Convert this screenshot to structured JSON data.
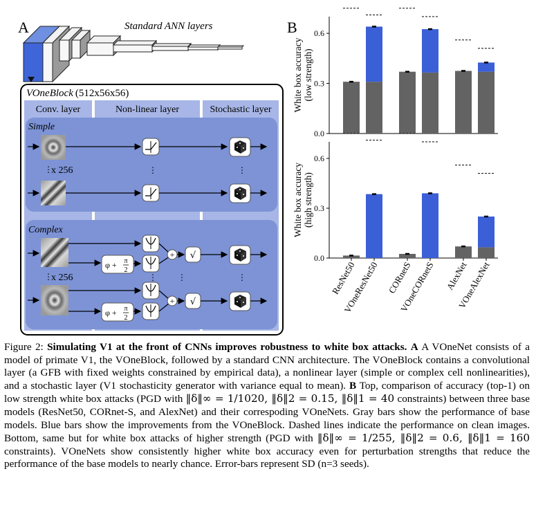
{
  "panel_a": {
    "letter": "A",
    "ann_label": "Standard ANN layers",
    "block_title_italic": "VOneBlock",
    "block_title_dims": "(512x56x56)",
    "col_headers": [
      "Conv. layer",
      "Non-linear layer",
      "Stochastic layer"
    ],
    "simple_label": "Simple",
    "complex_label": "Complex",
    "count_label": "x 256",
    "phase_label": "φ +",
    "phase_num": "π",
    "phase_den": "2",
    "sqrt_symbol": "√",
    "plus_symbol": "+",
    "colors": {
      "block_fill": "#8a9fdc",
      "column_fill": "#a7b6e6",
      "accent": "#3f66d8"
    }
  },
  "panel_b": {
    "letter": "B",
    "colors": {
      "base": "#636363",
      "improvement": "#3b5fd6"
    }
  },
  "chart_data": [
    {
      "type": "bar",
      "stacked": true,
      "ylabel": "White box accuracy (low strength)",
      "ylim": [
        0,
        0.7
      ],
      "yticks": [
        "0.0",
        "0.3",
        "0.6"
      ],
      "categories": [
        "ResNet50",
        "VOneResNet50",
        "CORnetS",
        "VOneCORnetS",
        "AlexNet",
        "VOneAlexNet"
      ],
      "series": [
        {
          "values": [
            0.31,
            0.31,
            0.37,
            0.365,
            0.375,
            0.37
          ]
        },
        {
          "values": [
            0,
            0.33,
            0,
            0.26,
            0,
            0.055
          ]
        }
      ],
      "totals": [
        0.31,
        0.64,
        0.37,
        0.625,
        0.375,
        0.425
      ],
      "clean_accuracy": [
        0.75,
        0.71,
        0.75,
        0.7,
        0.56,
        0.51
      ]
    },
    {
      "type": "bar",
      "stacked": true,
      "ylabel": "White box accuracy (high strength)",
      "ylim": [
        0,
        0.7
      ],
      "yticks": [
        "0.0",
        "0.3",
        "0.6"
      ],
      "categories": [
        "ResNet50",
        "VOneResNet50",
        "CORnetS",
        "VOneCORnetS",
        "AlexNet",
        "VOneAlexNet"
      ],
      "series": [
        {
          "values": [
            0.015,
            0.0,
            0.025,
            0.0,
            0.07,
            0.065
          ]
        },
        {
          "values": [
            0,
            0.385,
            0,
            0.39,
            0,
            0.185
          ]
        }
      ],
      "totals": [
        0.015,
        0.385,
        0.025,
        0.39,
        0.07,
        0.25
      ],
      "clean_accuracy": [
        0.75,
        0.71,
        0.75,
        0.7,
        0.56,
        0.51
      ]
    }
  ],
  "caption": {
    "fig_label": "Figure 2:",
    "bold_title": "Simulating V1 at the front of CNNs improves robustness to white box attacks.",
    "a_marker": "A",
    "a_text": "A VOneNet consists of a model of primate V1, the VOneBlock, followed by a standard CNN architecture. The VOneBlock contains a convolutional layer (a GFB with fixed weights constrained by empirical data), a nonlinear layer (simple or complex cell nonlinearities), and a stochastic layer (V1 stochasticity generator with variance equal to mean).",
    "b_marker": "B",
    "b_text1": "Top, comparison of accuracy (top-1) on low strength white box attacks (PGD with",
    "b_norms_low": "‖δ‖∞ = 1/1020, ‖δ‖2 = 0.15, ‖δ‖1 = 40",
    "b_text2": "constraints) between three base models (ResNet50, CORnet-S, and AlexNet) and their correspoding VOneNets. Gray bars show the performance of base models. Blue bars show the improvements from the VOneBlock. Dashed lines indicate the performance on clean images. Bottom, same but for white box attacks of higher strength (PGD with",
    "b_norms_high": "‖δ‖∞ = 1/255, ‖δ‖2 = 0.6, ‖δ‖1 = 160",
    "b_text3": "constraints). VOneNets show consistently higher white box accuracy even for perturbation strengths that reduce the performance of the base models to nearly chance. Error-bars represent SD (n=3 seeds)."
  }
}
